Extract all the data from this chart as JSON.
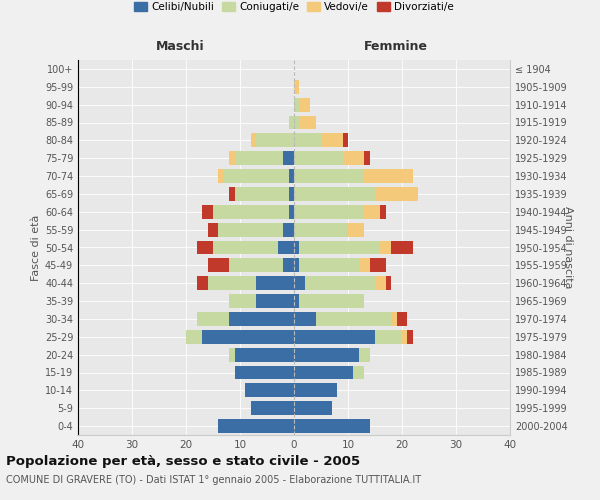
{
  "age_groups": [
    "0-4",
    "5-9",
    "10-14",
    "15-19",
    "20-24",
    "25-29",
    "30-34",
    "35-39",
    "40-44",
    "45-49",
    "50-54",
    "55-59",
    "60-64",
    "65-69",
    "70-74",
    "75-79",
    "80-84",
    "85-89",
    "90-94",
    "95-99",
    "100+"
  ],
  "birth_years": [
    "2000-2004",
    "1995-1999",
    "1990-1994",
    "1985-1989",
    "1980-1984",
    "1975-1979",
    "1970-1974",
    "1965-1969",
    "1960-1964",
    "1955-1959",
    "1950-1954",
    "1945-1949",
    "1940-1944",
    "1935-1939",
    "1930-1934",
    "1925-1929",
    "1920-1924",
    "1915-1919",
    "1910-1914",
    "1905-1909",
    "≤ 1904"
  ],
  "colors": {
    "celibi": "#3a6ea5",
    "coniugati": "#c5d9a0",
    "vedovi": "#f5c97a",
    "divorziati": "#c0392b"
  },
  "maschi": {
    "celibi": [
      14,
      8,
      9,
      11,
      11,
      17,
      12,
      7,
      7,
      2,
      3,
      2,
      1,
      1,
      1,
      2,
      0,
      0,
      0,
      0,
      0
    ],
    "coniugati": [
      0,
      0,
      0,
      0,
      1,
      3,
      6,
      5,
      9,
      10,
      12,
      12,
      14,
      10,
      12,
      9,
      7,
      1,
      0,
      0,
      0
    ],
    "vedovi": [
      0,
      0,
      0,
      0,
      0,
      0,
      0,
      0,
      0,
      0,
      0,
      0,
      0,
      0,
      1,
      1,
      1,
      0,
      0,
      0,
      0
    ],
    "divorziati": [
      0,
      0,
      0,
      0,
      0,
      0,
      0,
      0,
      2,
      4,
      3,
      2,
      2,
      1,
      0,
      0,
      0,
      0,
      0,
      0,
      0
    ]
  },
  "femmine": {
    "nubili": [
      14,
      7,
      8,
      11,
      12,
      15,
      4,
      1,
      2,
      1,
      1,
      0,
      0,
      0,
      0,
      0,
      0,
      0,
      0,
      0,
      0
    ],
    "coniugate": [
      0,
      0,
      0,
      2,
      2,
      5,
      14,
      12,
      13,
      11,
      15,
      10,
      13,
      15,
      13,
      9,
      5,
      1,
      1,
      0,
      0
    ],
    "vedove": [
      0,
      0,
      0,
      0,
      0,
      1,
      1,
      0,
      2,
      2,
      2,
      3,
      3,
      8,
      9,
      4,
      4,
      3,
      2,
      1,
      0
    ],
    "divorziate": [
      0,
      0,
      0,
      0,
      0,
      1,
      2,
      0,
      1,
      3,
      4,
      0,
      1,
      0,
      0,
      1,
      1,
      0,
      0,
      0,
      0
    ]
  },
  "xlim": 40,
  "title": "Popolazione per età, sesso e stato civile - 2005",
  "subtitle": "COMUNE DI GRAVERE (TO) - Dati ISTAT 1° gennaio 2005 - Elaborazione TUTTITALIA.IT",
  "xlabel_left": "Maschi",
  "xlabel_right": "Femmine",
  "ylabel_left": "Fasce di età",
  "ylabel_right": "Anni di nascita",
  "legend_labels": [
    "Celibi/Nubili",
    "Coniugati/e",
    "Vedovi/e",
    "Divorziati/e"
  ],
  "bg_color": "#f0f0f0",
  "plot_bg": "#e8e8e8"
}
